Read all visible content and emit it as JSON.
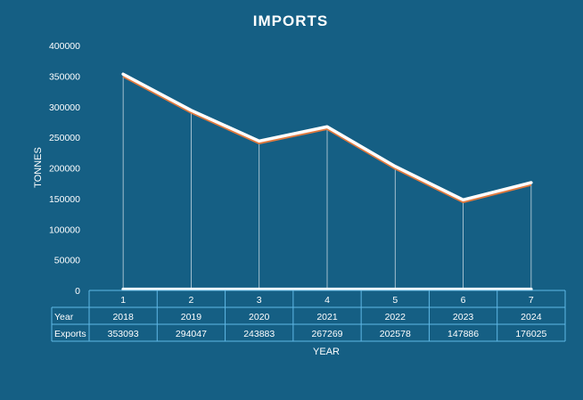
{
  "chart_data": {
    "type": "line",
    "title": "IMPORTS",
    "xlabel": "YEAR",
    "ylabel": "TONNES",
    "ylim": [
      0,
      400000
    ],
    "yticks": [
      "0",
      "50000",
      "100000",
      "150000",
      "200000",
      "250000",
      "300000",
      "350000",
      "400000"
    ],
    "categories": [
      "1",
      "2",
      "3",
      "4",
      "5",
      "6",
      "7"
    ],
    "grid": false,
    "series": [
      {
        "name": "Year",
        "values": [
          2018,
          2019,
          2020,
          2021,
          2022,
          2023,
          2024
        ],
        "display": [
          "2018",
          "2019",
          "2020",
          "2021",
          "2022",
          "2023",
          "2024"
        ]
      },
      {
        "name": "Exports",
        "values": [
          353093,
          294047,
          243883,
          267269,
          202578,
          147886,
          176025
        ],
        "display": [
          "353093",
          "294047",
          "243883",
          "267269",
          "202578",
          "147886",
          "176025"
        ]
      }
    ],
    "colors": {
      "background": "#155f84",
      "line": "#ffffff",
      "line_shadow": "#e07a3f",
      "table_border": "#5fb8e6"
    }
  }
}
